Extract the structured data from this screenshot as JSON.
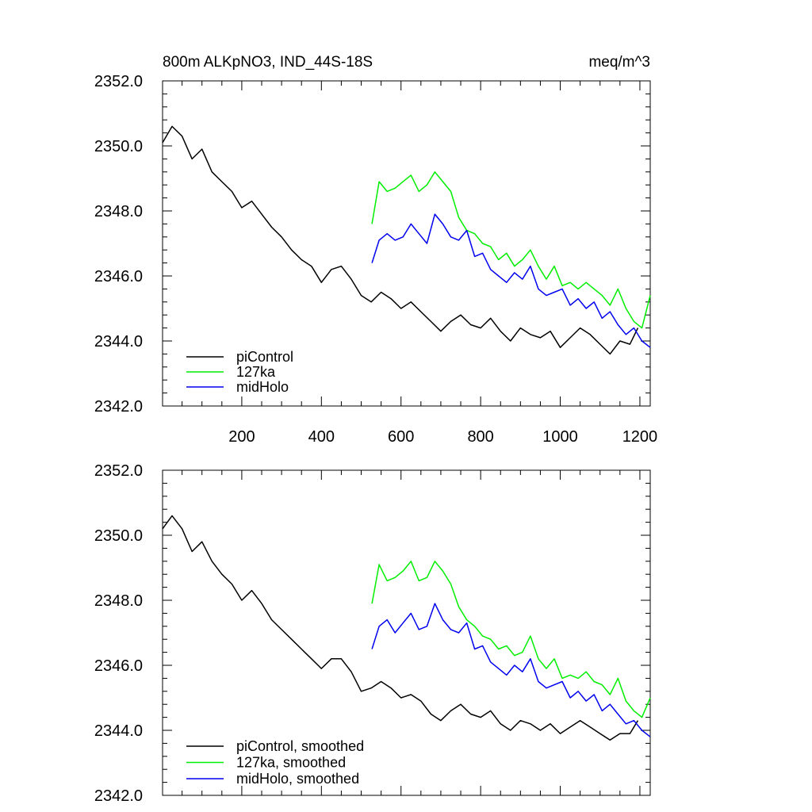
{
  "chart_data": [
    {
      "type": "line",
      "title": "800m ALKpNO3, IND_44S-18S",
      "units": "meq/m^3",
      "xlabel": "",
      "ylabel": "",
      "xlim": [
        1,
        1226
      ],
      "ylim": [
        2342.0,
        2352.0
      ],
      "x_ticks": [
        200,
        400,
        600,
        800,
        1000,
        1200
      ],
      "x_tick_labels": [
        "200",
        "400",
        "600",
        "800",
        "1000",
        "1200"
      ],
      "y_ticks": [
        2342.0,
        2344.0,
        2346.0,
        2348.0,
        2350.0,
        2352.0
      ],
      "y_tick_labels": [
        "2342.0",
        "2344.0",
        "2346.0",
        "2348.0",
        "2350.0",
        "2352.0"
      ],
      "legend_position": "bottom-left",
      "series": [
        {
          "name": "piControl",
          "color": "#000000",
          "x": [
            1,
            25,
            50,
            75,
            100,
            125,
            150,
            175,
            200,
            225,
            250,
            275,
            300,
            325,
            350,
            375,
            400,
            425,
            450,
            475,
            500,
            525,
            550,
            575,
            600,
            625,
            650,
            675,
            700,
            725,
            750,
            775,
            800,
            825,
            850,
            875,
            900,
            925,
            950,
            975,
            1000,
            1025,
            1050,
            1075,
            1100,
            1125,
            1150,
            1175,
            1195
          ],
          "y": [
            2350.1,
            2350.6,
            2350.3,
            2349.6,
            2349.9,
            2349.2,
            2348.9,
            2348.6,
            2348.1,
            2348.3,
            2347.9,
            2347.5,
            2347.2,
            2346.8,
            2346.5,
            2346.3,
            2345.8,
            2346.2,
            2346.3,
            2345.9,
            2345.4,
            2345.2,
            2345.5,
            2345.3,
            2345.0,
            2345.2,
            2344.9,
            2344.6,
            2344.3,
            2344.6,
            2344.8,
            2344.5,
            2344.4,
            2344.7,
            2344.3,
            2344.0,
            2344.4,
            2344.2,
            2344.1,
            2344.3,
            2343.8,
            2344.1,
            2344.4,
            2344.2,
            2343.9,
            2343.6,
            2344.0,
            2343.9,
            2344.4
          ]
        },
        {
          "name": "127ka",
          "color": "#00ee00",
          "x": [
            527,
            545,
            565,
            585,
            605,
            625,
            645,
            665,
            685,
            705,
            725,
            745,
            765,
            785,
            805,
            825,
            845,
            865,
            885,
            905,
            925,
            945,
            965,
            985,
            1005,
            1025,
            1045,
            1065,
            1085,
            1105,
            1125,
            1145,
            1165,
            1185,
            1205,
            1226
          ],
          "y": [
            2347.6,
            2348.9,
            2348.6,
            2348.7,
            2348.9,
            2349.1,
            2348.6,
            2348.8,
            2349.2,
            2348.9,
            2348.6,
            2347.8,
            2347.4,
            2347.3,
            2347.0,
            2346.9,
            2346.5,
            2346.7,
            2346.3,
            2346.5,
            2346.8,
            2346.3,
            2345.9,
            2346.3,
            2345.7,
            2345.8,
            2345.6,
            2345.8,
            2345.6,
            2345.4,
            2345.1,
            2345.6,
            2345.0,
            2344.6,
            2344.4,
            2345.4
          ]
        },
        {
          "name": "midHolo",
          "color": "#0000ee",
          "x": [
            527,
            545,
            565,
            585,
            605,
            625,
            645,
            665,
            685,
            705,
            725,
            745,
            765,
            785,
            805,
            825,
            845,
            865,
            885,
            905,
            925,
            945,
            965,
            985,
            1005,
            1025,
            1045,
            1065,
            1085,
            1105,
            1125,
            1145,
            1165,
            1185,
            1205,
            1226
          ],
          "y": [
            2346.4,
            2347.1,
            2347.3,
            2347.1,
            2347.2,
            2347.6,
            2347.3,
            2347.0,
            2347.9,
            2347.6,
            2347.2,
            2347.1,
            2347.4,
            2346.6,
            2346.7,
            2346.2,
            2346.0,
            2345.8,
            2346.1,
            2345.9,
            2346.3,
            2345.6,
            2345.4,
            2345.5,
            2345.6,
            2345.1,
            2345.3,
            2345.0,
            2345.2,
            2344.7,
            2344.9,
            2344.5,
            2344.2,
            2344.4,
            2344.0,
            2343.8
          ]
        }
      ]
    },
    {
      "type": "line",
      "title": "",
      "xlabel": "",
      "ylabel": "",
      "xlim": [
        1,
        1226
      ],
      "ylim": [
        2342.0,
        2352.0
      ],
      "x_ticks": [
        200,
        400,
        600,
        800,
        1000,
        1200
      ],
      "y_ticks": [
        2342.0,
        2344.0,
        2346.0,
        2348.0,
        2350.0,
        2352.0
      ],
      "y_tick_labels": [
        "2342.0",
        "2344.0",
        "2346.0",
        "2348.0",
        "2350.0",
        "2352.0"
      ],
      "legend_position": "bottom-left",
      "series": [
        {
          "name": "piControl, smoothed",
          "color": "#000000",
          "x": [
            1,
            25,
            50,
            75,
            100,
            125,
            150,
            175,
            200,
            225,
            250,
            275,
            300,
            325,
            350,
            375,
            400,
            425,
            450,
            475,
            500,
            525,
            550,
            575,
            600,
            625,
            650,
            675,
            700,
            725,
            750,
            775,
            800,
            825,
            850,
            875,
            900,
            925,
            950,
            975,
            1000,
            1025,
            1050,
            1075,
            1100,
            1125,
            1150,
            1175,
            1195
          ],
          "y": [
            2350.2,
            2350.6,
            2350.2,
            2349.5,
            2349.8,
            2349.2,
            2348.8,
            2348.5,
            2348.0,
            2348.3,
            2347.9,
            2347.4,
            2347.1,
            2346.8,
            2346.5,
            2346.2,
            2345.9,
            2346.2,
            2346.2,
            2345.8,
            2345.2,
            2345.3,
            2345.5,
            2345.3,
            2345.0,
            2345.1,
            2344.9,
            2344.5,
            2344.3,
            2344.6,
            2344.8,
            2344.5,
            2344.4,
            2344.6,
            2344.2,
            2344.0,
            2344.3,
            2344.2,
            2344.0,
            2344.2,
            2343.9,
            2344.1,
            2344.3,
            2344.1,
            2343.9,
            2343.7,
            2343.9,
            2343.9,
            2344.3
          ]
        },
        {
          "name": "127ka, smoothed",
          "color": "#00ee00",
          "x": [
            527,
            545,
            565,
            585,
            605,
            625,
            645,
            665,
            685,
            705,
            725,
            745,
            765,
            785,
            805,
            825,
            845,
            865,
            885,
            905,
            925,
            945,
            965,
            985,
            1005,
            1025,
            1045,
            1065,
            1085,
            1105,
            1125,
            1145,
            1165,
            1185,
            1205,
            1226
          ],
          "y": [
            2347.9,
            2349.1,
            2348.6,
            2348.7,
            2348.9,
            2349.2,
            2348.6,
            2348.7,
            2349.2,
            2348.9,
            2348.5,
            2347.8,
            2347.4,
            2347.2,
            2346.9,
            2346.8,
            2346.5,
            2346.6,
            2346.3,
            2346.4,
            2346.9,
            2346.2,
            2345.9,
            2346.2,
            2345.6,
            2345.7,
            2345.6,
            2345.8,
            2345.5,
            2345.4,
            2345.1,
            2345.6,
            2344.9,
            2344.6,
            2344.4,
            2345.0
          ]
        },
        {
          "name": "midHolo, smoothed",
          "color": "#0000ee",
          "x": [
            527,
            545,
            565,
            585,
            605,
            625,
            645,
            665,
            685,
            705,
            725,
            745,
            765,
            785,
            805,
            825,
            845,
            865,
            885,
            905,
            925,
            945,
            965,
            985,
            1005,
            1025,
            1045,
            1065,
            1085,
            1105,
            1125,
            1145,
            1165,
            1185,
            1205,
            1226
          ],
          "y": [
            2346.5,
            2347.2,
            2347.4,
            2347.0,
            2347.3,
            2347.6,
            2347.1,
            2347.2,
            2347.9,
            2347.4,
            2347.1,
            2347.0,
            2347.3,
            2346.5,
            2346.6,
            2346.1,
            2345.9,
            2345.7,
            2346.0,
            2345.8,
            2346.2,
            2345.5,
            2345.3,
            2345.4,
            2345.5,
            2345.0,
            2345.2,
            2344.9,
            2345.1,
            2344.6,
            2344.8,
            2344.5,
            2344.2,
            2344.3,
            2344.0,
            2343.8
          ]
        }
      ]
    }
  ]
}
